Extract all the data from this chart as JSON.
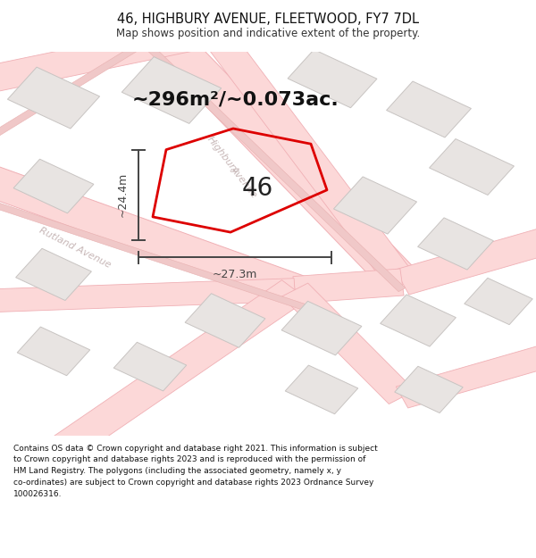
{
  "title_line1": "46, HIGHBURY AVENUE, FLEETWOOD, FY7 7DL",
  "title_line2": "Map shows position and indicative extent of the property.",
  "area_text": "~296m²/~0.073ac.",
  "house_number": "46",
  "dim_width": "~27.3m",
  "dim_height": "~24.4m",
  "footer_lines": [
    "Contains OS data © Crown copyright and database right 2021. This information is subject",
    "to Crown copyright and database rights 2023 and is reproduced with the permission of",
    "HM Land Registry. The polygons (including the associated geometry, namely x, y",
    "co-ordinates) are subject to Crown copyright and database rights 2023 Ordnance Survey",
    "100026316."
  ],
  "map_bg": "#ffffff",
  "road_fill": "#fadadc",
  "road_line": "#f0b0b5",
  "building_fill": "#e8e4e2",
  "building_line": "#c8c4c2",
  "plot_red": "#dd0000",
  "street_color": "#c8b8b8",
  "dim_color": "#444444",
  "title1_size": 10.5,
  "title2_size": 8.5,
  "area_size": 16,
  "num_size": 20,
  "dim_size": 9,
  "street_size": 8
}
